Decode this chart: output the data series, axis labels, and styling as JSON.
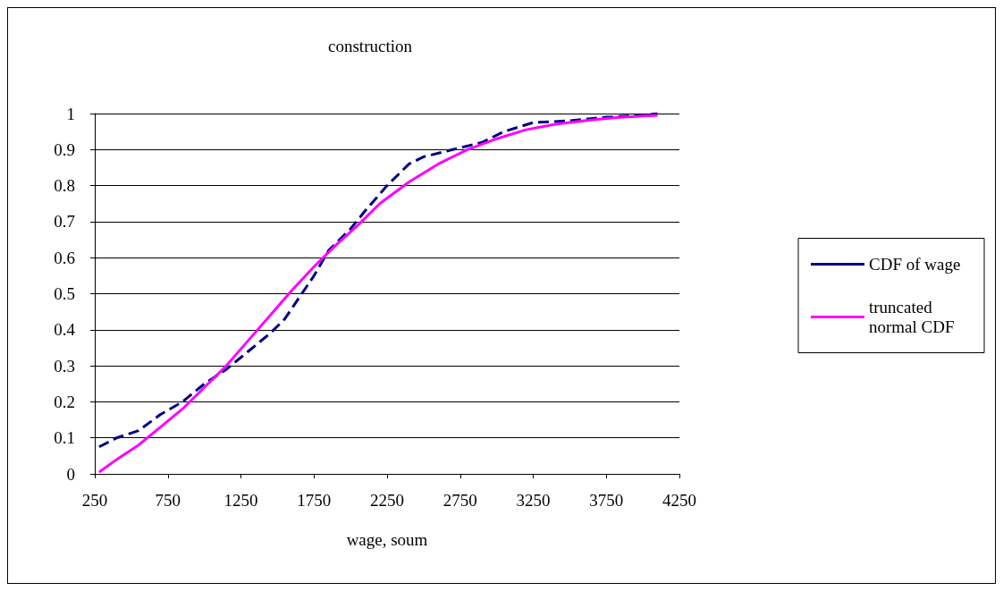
{
  "chart_data": {
    "type": "line",
    "title": "construction",
    "xlabel": "wage, soum",
    "xlim": [
      250,
      4250
    ],
    "xticks": [
      250,
      750,
      1250,
      1750,
      2250,
      2750,
      3250,
      3750,
      4250
    ],
    "ylim": [
      0,
      1
    ],
    "yticks": [
      0,
      0.1,
      0.2,
      0.3,
      0.4,
      0.5,
      0.6,
      0.7,
      0.8,
      0.9,
      1
    ],
    "grid": "y",
    "legend": "right",
    "marker": "none",
    "series": [
      {
        "name": "CDF of wage",
        "color": "#000080",
        "line_style": "dashed",
        "x": [
          280,
          400,
          550,
          700,
          850,
          1000,
          1150,
          1300,
          1450,
          1550,
          1650,
          1750,
          1850,
          2000,
          2100,
          2250,
          2400,
          2500,
          2700,
          2900,
          3050,
          3250,
          3500,
          3750,
          4000,
          4100
        ],
        "values": [
          0.075,
          0.1,
          0.12,
          0.165,
          0.2,
          0.25,
          0.29,
          0.34,
          0.39,
          0.43,
          0.49,
          0.55,
          0.62,
          0.68,
          0.73,
          0.8,
          0.86,
          0.88,
          0.9,
          0.92,
          0.95,
          0.975,
          0.98,
          0.99,
          0.995,
          1.0
        ]
      },
      {
        "name": "truncated normal CDF",
        "color": "#ff00ff",
        "line_style": "solid",
        "x": [
          280,
          400,
          550,
          700,
          850,
          1000,
          1150,
          1300,
          1450,
          1600,
          1750,
          1900,
          2050,
          2200,
          2400,
          2600,
          2800,
          3000,
          3200,
          3400,
          3600,
          3800,
          4000,
          4100
        ],
        "values": [
          0.005,
          0.04,
          0.08,
          0.13,
          0.18,
          0.24,
          0.3,
          0.37,
          0.44,
          0.51,
          0.575,
          0.635,
          0.69,
          0.75,
          0.81,
          0.86,
          0.9,
          0.93,
          0.955,
          0.97,
          0.98,
          0.988,
          0.993,
          0.995
        ]
      }
    ]
  }
}
